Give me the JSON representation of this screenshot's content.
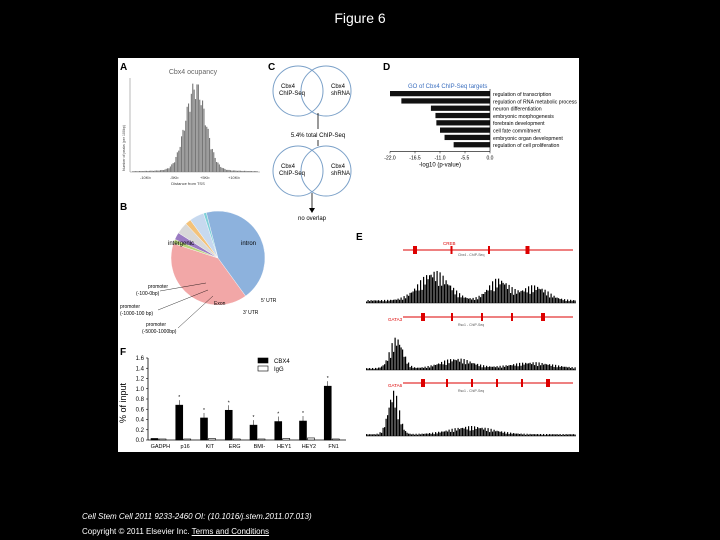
{
  "title": "Figure 6",
  "citation": "Cell Stem Cell 2011 9233-2460 OI: (10.1016/j.stem.2011.07.013)",
  "copyright": "Copyright © 2011 Elsevier Inc.",
  "terms_link": "Terms and Conditions",
  "panels": {
    "A": {
      "letter": "A",
      "title": "Cbx4 ocupancy",
      "ylabel": "Number of peaks (per 100bp)",
      "xlabel": "Distance from TSS",
      "ticks": [
        "-10Kb",
        "-5Kb",
        "+5Kb",
        "+10Kb"
      ]
    },
    "B": {
      "letter": "B"
    },
    "C": {
      "letter": "C",
      "circle1a": "Cbx4",
      "circle1b": "ChIP-Seq",
      "circle2a": "Cbx4",
      "circle2b": "shRNA",
      "result1": "5.4% total ChIP-Seq",
      "circle3a": "Cbx4",
      "circle3b": "ChIP-Seq",
      "circle4a": "Cbx4",
      "circle4b": "shRNA",
      "result2": "no overlap"
    },
    "D": {
      "letter": "D",
      "header": "GO of Cbx4 ChIP-Seq targets"
    },
    "E": {
      "letter": "E",
      "genes": [
        "CREB",
        "GATA3",
        "GATA6"
      ],
      "track_labels": [
        "Cbx4 - ChIP-Seq",
        "Rsc1 - ChIP-Seq",
        "Rsc1 - ChIP-Seq"
      ]
    },
    "F": {
      "letter": "F"
    }
  },
  "chart_data": [
    {
      "type": "bar",
      "panel": "D",
      "categories": [
        "regulation of transcription",
        "regulation of RNA metabolic process",
        "neuron differentiation",
        "embryonic morphogenesis",
        "forebrain development",
        "cell fate commitment",
        "embryonic organ development",
        "regulation of cell proliferation"
      ],
      "values": [
        -22.0,
        -19.5,
        -13.0,
        -12.0,
        -11.8,
        -11.0,
        -10.0,
        -8.0
      ],
      "xlabel": "-log10 (p-value)",
      "ticks": [
        "-22.0",
        "-16.5",
        "-11.0",
        "-5.5",
        "0.0"
      ],
      "xlim": [
        -22.0,
        0.0
      ]
    },
    {
      "type": "pie",
      "panel": "B",
      "slices": [
        {
          "name": "intergenic",
          "value": 40,
          "color": "#f2a7a7"
        },
        {
          "name": "promoter (-100-0bp)",
          "value": 1.5,
          "color": "#b9d37a"
        },
        {
          "name": "promoter (-1000-100bp)",
          "value": 2.5,
          "color": "#9a7bc2"
        },
        {
          "name": "promoter (-5000-1000bp)",
          "value": 4,
          "color": "#d8d8d8"
        },
        {
          "name": "3' UTR",
          "value": 2,
          "color": "#f3c27a"
        },
        {
          "name": "exon",
          "value": 5,
          "color": "#c7d9ef"
        },
        {
          "name": "5' UTR",
          "value": 1,
          "color": "#7fd0d8"
        },
        {
          "name": "intron",
          "value": 44,
          "color": "#8db2dd"
        }
      ],
      "labels": {
        "intergenic": "intergenic",
        "intron": "intron",
        "exon": "Exon",
        "utr5": "5' UTR",
        "utr3": "3' UTR",
        "p1": "promoter",
        "p1b": "(-100-0bp)",
        "p2": "promoter",
        "p2b": "(-1000-100 bp)",
        "p3": "promoter",
        "p3b": "(-5000-1000bp)"
      }
    },
    {
      "type": "bar",
      "panel": "F",
      "categories": [
        "GADPH",
        "p16",
        "KIT",
        "ERG",
        "BMI-",
        "HEY1",
        "HEY2",
        "FN1"
      ],
      "series": [
        {
          "name": "CBX4",
          "values": [
            0.03,
            0.68,
            0.43,
            0.58,
            0.29,
            0.36,
            0.37,
            1.05
          ],
          "color": "#000000"
        },
        {
          "name": "IgG",
          "values": [
            0.02,
            0.02,
            0.03,
            0.02,
            0.02,
            0.03,
            0.04,
            0.02
          ],
          "color": "#ffffff"
        }
      ],
      "ylabel": "% of input",
      "yticks": [
        "0.0",
        "0.2",
        "0.4",
        "0.6",
        "0.8",
        "1.0",
        "1.2",
        "1.4",
        "1.6"
      ],
      "ylim": [
        0,
        1.6
      ]
    }
  ]
}
